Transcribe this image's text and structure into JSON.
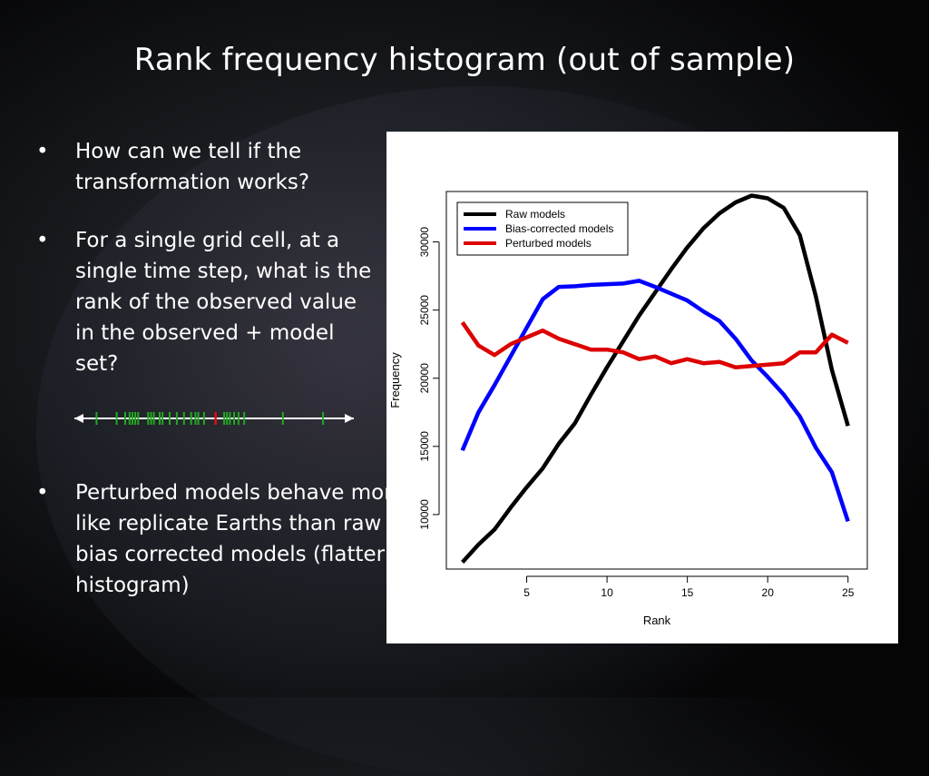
{
  "slide": {
    "title": "Rank frequency histogram (out of sample)",
    "bullets": [
      {
        "marker": "•",
        "text": "How can we tell if the transformation works?"
      },
      {
        "marker": "•",
        "text": "For a single grid cell, at a single time step, what is the rank of the observed value in the observed + model set?"
      },
      {
        "marker": "•",
        "text": "Perturbed models behave more like replicate Earths than raw or bias corrected models (flatter histogram)"
      }
    ],
    "rank_strip": {
      "model_color": "#22aa22",
      "observed_color": "#dd1111",
      "model_ticks": [
        0.09,
        0.16,
        0.19,
        0.205,
        0.215,
        0.225,
        0.235,
        0.27,
        0.28,
        0.29,
        0.31,
        0.32,
        0.345,
        0.37,
        0.395,
        0.42,
        0.435,
        0.445,
        0.465,
        0.535,
        0.545,
        0.555,
        0.57,
        0.585,
        0.605,
        0.74,
        0.88
      ],
      "observed_tick": 0.505
    }
  },
  "chart_data": {
    "type": "line",
    "xlabel": "Rank",
    "ylabel": "Frequency",
    "xlim": [
      0,
      26.2
    ],
    "ylim": [
      6000,
      33700
    ],
    "xticks": [
      5,
      10,
      15,
      20,
      25
    ],
    "yticks": [
      10000,
      15000,
      20000,
      25000,
      30000
    ],
    "grid": false,
    "legend": "top-left",
    "x": [
      1,
      2,
      3,
      4,
      5,
      6,
      7,
      8,
      9,
      10,
      11,
      12,
      13,
      14,
      15,
      16,
      17,
      18,
      19,
      20,
      21,
      22,
      23,
      24,
      25
    ],
    "series": [
      {
        "name": "Raw models",
        "color": "#000000",
        "values": [
          6500,
          7800,
          8900,
          10500,
          12000,
          13400,
          15200,
          16700,
          18800,
          20800,
          22700,
          24600,
          26300,
          28000,
          29600,
          31000,
          32100,
          32900,
          33400,
          33200,
          32500,
          30500,
          26000,
          20600,
          16500
        ]
      },
      {
        "name": "Bias-corrected models",
        "color": "#0000ff",
        "values": [
          14700,
          17500,
          19500,
          21600,
          23700,
          25800,
          26700,
          26750,
          26850,
          26900,
          26950,
          27150,
          26700,
          26200,
          25700,
          24900,
          24200,
          22900,
          21300,
          20100,
          18800,
          17200,
          14900,
          13100,
          9500
        ]
      },
      {
        "name": "Perturbed models",
        "color": "#dd0000",
        "values": [
          24100,
          22400,
          21700,
          22500,
          23000,
          23500,
          22900,
          22500,
          22100,
          22100,
          21900,
          21400,
          21600,
          21100,
          21400,
          21100,
          21200,
          20800,
          20900,
          21000,
          21100,
          21900,
          21900,
          23200,
          22600
        ]
      }
    ]
  }
}
